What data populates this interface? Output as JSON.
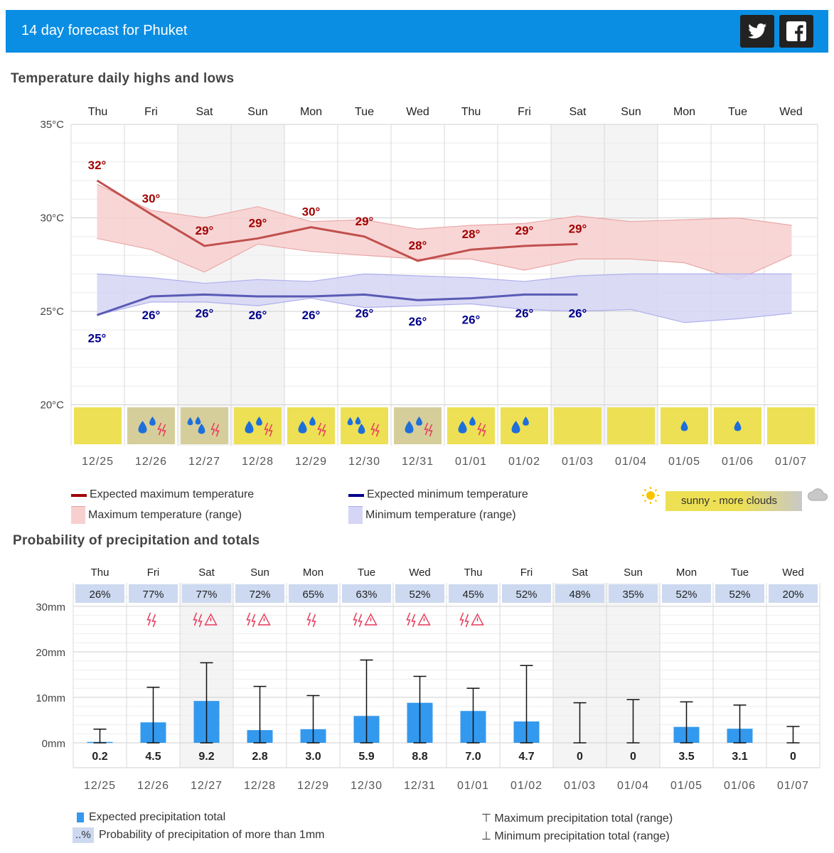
{
  "header": {
    "title": "14 day forecast for Phuket",
    "twitter_icon": "twitter-icon",
    "facebook_icon": "facebook-icon",
    "bg_color": "#0a8ee3"
  },
  "temperature": {
    "title": "Temperature daily highs and lows",
    "days": [
      "Thu",
      "Fri",
      "Sat",
      "Sun",
      "Mon",
      "Tue",
      "Wed",
      "Thu",
      "Fri",
      "Sat",
      "Sun",
      "Mon",
      "Tue",
      "Wed"
    ],
    "dates": [
      "12/25",
      "12/26",
      "12/27",
      "12/28",
      "12/29",
      "12/30",
      "12/31",
      "01/01",
      "01/02",
      "01/03",
      "01/04",
      "01/05",
      "01/06",
      "01/07"
    ],
    "y_ticks": [
      "35°C",
      "30°C",
      "25°C",
      "20°C"
    ],
    "weekend_indices": [
      2,
      3,
      9,
      10
    ],
    "legend": {
      "max_expected": "Expected maximum temperature",
      "max_range": "Maximum temperature (range)",
      "min_expected": "Expected minimum temperature",
      "min_range": "Minimum temperature (range)",
      "sky": "sunny - more clouds"
    },
    "colors": {
      "max_line": "#c0504d",
      "max_label": "#a00000",
      "max_band": "#f8cfcf",
      "min_line": "#5a5ab5",
      "min_label": "#00008b",
      "min_band": "#d5d5f5",
      "sunny": "#ede055",
      "cloudy": "#d6ce9a"
    }
  },
  "precipitation": {
    "title": "Probability of precipitation and totals",
    "y_ticks": [
      "30mm",
      "20mm",
      "10mm",
      "0mm"
    ],
    "legend": {
      "expected": "Expected precipitation total",
      "probability_sample": "..%",
      "probability": "Probability of precipitation of more than 1mm",
      "max": "⊤ Maximum precipitation total (range)",
      "min": "⊥ Minimum precipitation total (range)"
    },
    "colors": {
      "bar": "#3399ee",
      "prob_box": "#ccd9f0",
      "thunder": "#e8395a"
    }
  },
  "chart_data": [
    {
      "type": "line",
      "title": "Temperature daily highs and lows",
      "categories": [
        "12/25",
        "12/26",
        "12/27",
        "12/28",
        "12/29",
        "12/30",
        "12/31",
        "01/01",
        "01/02",
        "01/03",
        "01/04",
        "01/05",
        "01/06",
        "01/07"
      ],
      "ylim": [
        20,
        35
      ],
      "series": [
        {
          "name": "Expected maximum temperature",
          "values": [
            32,
            30.2,
            28.5,
            28.9,
            29.5,
            29.0,
            27.7,
            28.3,
            28.5,
            28.6,
            null,
            null,
            null,
            null
          ],
          "labels": [
            "32°",
            "30°",
            "29°",
            "29°",
            "30°",
            "29°",
            "28°",
            "28°",
            "29°",
            "29°",
            "",
            "",
            "",
            ""
          ]
        },
        {
          "name": "Expected minimum temperature",
          "values": [
            24.8,
            25.8,
            25.9,
            25.8,
            25.8,
            25.9,
            25.6,
            25.7,
            25.9,
            25.9,
            null,
            null,
            null,
            null
          ],
          "labels": [
            "25°",
            "26°",
            "26°",
            "26°",
            "26°",
            "26°",
            "26°",
            "26°",
            "26°",
            "26°",
            "",
            "",
            "",
            ""
          ]
        },
        {
          "name": "Maximum temperature (range)",
          "upper": [
            31.8,
            30.4,
            30.0,
            30.6,
            29.8,
            29.9,
            29.4,
            29.6,
            29.7,
            30.1,
            29.8,
            29.9,
            30.0,
            29.6
          ],
          "lower": [
            28.9,
            28.3,
            27.1,
            28.6,
            28.2,
            28.0,
            27.8,
            27.8,
            27.2,
            27.8,
            27.8,
            27.6,
            26.7,
            28.0
          ]
        },
        {
          "name": "Minimum temperature (range)",
          "upper": [
            27.0,
            26.8,
            26.5,
            26.7,
            26.6,
            27.0,
            26.9,
            26.8,
            26.6,
            26.9,
            27.0,
            27.0,
            27.0,
            27.0
          ],
          "lower": [
            24.8,
            25.5,
            25.5,
            25.3,
            25.7,
            25.2,
            25.3,
            25.4,
            25.1,
            25.0,
            25.1,
            24.4,
            24.6,
            24.9
          ]
        }
      ],
      "weather": [
        "sunny",
        "rain-thunder",
        "rain-heavy-thunder",
        "rain-thunder",
        "rain-thunder",
        "rain-heavy-thunder",
        "rain-thunder",
        "rain-thunder",
        "rain",
        "sunny",
        "sunny",
        "light-rain",
        "light-rain",
        "sunny"
      ],
      "weather_bg": [
        "sunny",
        "cloudy",
        "cloudy",
        "sunny",
        "sunny",
        "sunny",
        "cloudy",
        "sunny",
        "sunny",
        "sunny",
        "sunny",
        "sunny",
        "sunny",
        "sunny"
      ]
    },
    {
      "type": "bar",
      "title": "Probability of precipitation and totals",
      "categories": [
        "12/25",
        "12/26",
        "12/27",
        "12/28",
        "12/29",
        "12/30",
        "12/31",
        "01/01",
        "01/02",
        "01/03",
        "01/04",
        "01/05",
        "01/06",
        "01/07"
      ],
      "ylim": [
        0,
        30
      ],
      "ylabel": "mm",
      "values": [
        0.2,
        4.5,
        9.2,
        2.8,
        3.0,
        5.9,
        8.8,
        7.0,
        4.7,
        0,
        0,
        3.5,
        3.1,
        0
      ],
      "value_labels": [
        "0.2",
        "4.5",
        "9.2",
        "2.8",
        "3.0",
        "5.9",
        "8.8",
        "7.0",
        "4.7",
        "0",
        "0",
        "3.5",
        "3.1",
        "0"
      ],
      "range_max": [
        3.0,
        12.2,
        17.6,
        12.4,
        10.4,
        18.2,
        14.6,
        12.0,
        17.0,
        8.8,
        9.5,
        9.0,
        8.3,
        3.6
      ],
      "range_min": [
        0,
        0,
        0,
        0,
        0,
        0,
        0,
        0,
        0,
        0,
        0,
        0,
        0,
        0
      ],
      "probability": [
        "26%",
        "77%",
        "77%",
        "72%",
        "65%",
        "63%",
        "52%",
        "45%",
        "52%",
        "48%",
        "35%",
        "52%",
        "52%",
        "20%"
      ],
      "thunder": [
        "none",
        "thunder",
        "thunder-warning",
        "thunder-warning",
        "thunder",
        "thunder-warning",
        "thunder-warning",
        "thunder-warning",
        "none",
        "none",
        "none",
        "none",
        "none",
        "none"
      ]
    }
  ]
}
